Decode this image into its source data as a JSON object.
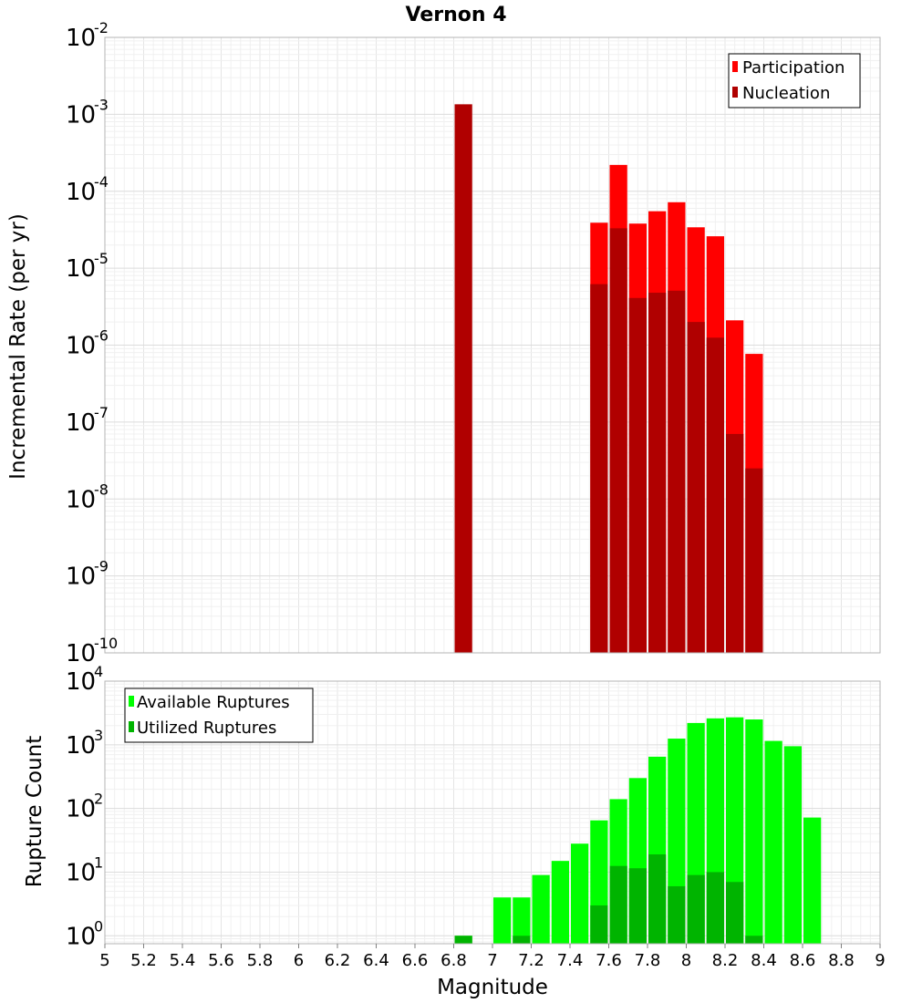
{
  "chart_data": [
    {
      "type": "bar",
      "scale": "log",
      "title": "Vernon 4",
      "xlabel": "Magnitude",
      "ylabel": "Incremental Rate (per yr)",
      "xlim": [
        5,
        9
      ],
      "ylim": [
        1e-10,
        0.01
      ],
      "bin_width": 0.1,
      "y_tick_base": "10",
      "y_ticks": [
        {
          "value": 1e-10,
          "exp": "-10"
        },
        {
          "value": 1e-09,
          "exp": "-9"
        },
        {
          "value": 1e-08,
          "exp": "-8"
        },
        {
          "value": 1e-07,
          "exp": "-7"
        },
        {
          "value": 1e-06,
          "exp": "-6"
        },
        {
          "value": 1e-05,
          "exp": "-5"
        },
        {
          "value": 0.0001,
          "exp": "-4"
        },
        {
          "value": 0.001,
          "exp": "-3"
        },
        {
          "value": 0.01,
          "exp": "-2"
        }
      ],
      "legend_position": "top-right",
      "series": [
        {
          "name": "Participation",
          "color": "#ff0000",
          "x": [
            7.55,
            7.65,
            7.75,
            7.85,
            7.95,
            8.05,
            8.15,
            8.25,
            8.35
          ],
          "values": [
            3.9e-05,
            0.00022,
            3.8e-05,
            5.5e-05,
            7.2e-05,
            3.4e-05,
            2.6e-05,
            2.1e-06,
            7.7e-07
          ]
        },
        {
          "name": "Nucleation",
          "color": "#b00000",
          "x": [
            6.85,
            7.55,
            7.65,
            7.75,
            7.85,
            7.95,
            8.05,
            8.15,
            8.25,
            8.35
          ],
          "values": [
            0.00135,
            6.2e-06,
            3.3e-05,
            4.1e-06,
            4.8e-06,
            5.1e-06,
            2e-06,
            1.25e-06,
            7e-08,
            2.5e-08
          ]
        }
      ]
    },
    {
      "type": "bar",
      "scale": "log",
      "xlabel": "Magnitude",
      "ylabel": "Rupture Count",
      "xlim": [
        5,
        9
      ],
      "ylim": [
        0.75,
        10000
      ],
      "bin_width": 0.1,
      "x_ticks": [
        "5",
        "5.2",
        "5.4",
        "5.6",
        "5.8",
        "6",
        "6.2",
        "6.4",
        "6.6",
        "6.8",
        "7",
        "7.2",
        "7.4",
        "7.6",
        "7.8",
        "8",
        "8.2",
        "8.4",
        "8.6",
        "8.8",
        "9"
      ],
      "y_tick_base": "10",
      "y_ticks": [
        {
          "value": 1,
          "exp": "0"
        },
        {
          "value": 10,
          "exp": "1"
        },
        {
          "value": 100,
          "exp": "2"
        },
        {
          "value": 1000,
          "exp": "3"
        },
        {
          "value": 10000,
          "exp": "4"
        }
      ],
      "legend_position": "top-left",
      "series": [
        {
          "name": "Available Ruptures",
          "color": "#00ff00",
          "x": [
            6.85,
            7.05,
            7.15,
            7.25,
            7.35,
            7.45,
            7.55,
            7.65,
            7.75,
            7.85,
            7.95,
            8.05,
            8.15,
            8.25,
            8.35,
            8.45,
            8.55,
            8.65
          ],
          "values": [
            1,
            4,
            4,
            9,
            15,
            28,
            65,
            140,
            300,
            650,
            1250,
            2200,
            2600,
            2700,
            2500,
            1150,
            950,
            72
          ]
        },
        {
          "name": "Utilized Ruptures",
          "color": "#00b400",
          "x": [
            6.85,
            7.15,
            7.55,
            7.65,
            7.75,
            7.85,
            7.95,
            8.05,
            8.15,
            8.25,
            8.35
          ],
          "values": [
            1,
            1,
            3,
            12.5,
            11.5,
            19,
            6,
            9,
            10,
            7,
            1
          ]
        }
      ]
    }
  ]
}
